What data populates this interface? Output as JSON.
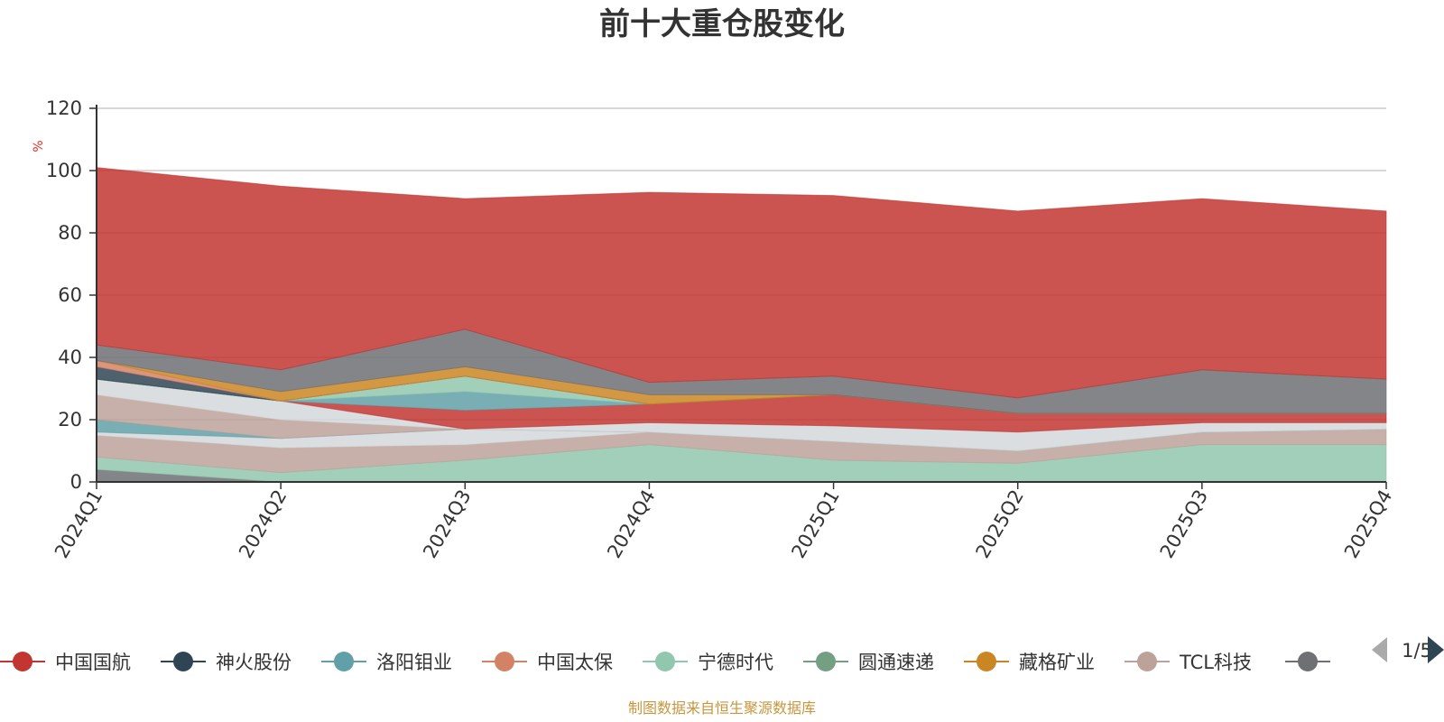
{
  "title": "前十大重仓股变化",
  "source": "制图数据来自恒生聚源数据库",
  "colors": {
    "text": "#333333",
    "unit": "#d93025",
    "source": "#c8963c",
    "axis": "#333333",
    "grid": "#cccccc",
    "pager_active": "#2f4554",
    "pager_inactive": "#aaaaaa"
  },
  "legend": {
    "items": [
      {
        "name": "中国国航",
        "color": "#c23531"
      },
      {
        "name": "神火股份",
        "color": "#2f4554"
      },
      {
        "name": "洛阳钼业",
        "color": "#61a0a8"
      },
      {
        "name": "中国太保",
        "color": "#d48265"
      },
      {
        "name": "宁德时代",
        "color": "#91c7ae"
      },
      {
        "name": "圆通速递",
        "color": "#749f83"
      },
      {
        "name": "藏格矿业",
        "color": "#ca8622"
      },
      {
        "name": "TCL科技",
        "color": "#bda29a"
      },
      {
        "name": "",
        "color": "#6e7074"
      }
    ],
    "page": "1/5"
  },
  "chart_data": {
    "type": "area",
    "stacked": true,
    "x": [
      "2024Q1",
      "2024Q2",
      "2024Q3",
      "2024Q4",
      "2025Q1",
      "2025Q2",
      "2025Q3",
      "2025Q4"
    ],
    "ylabel": "%",
    "ylim": [
      0,
      120
    ],
    "yticks": [
      0,
      20,
      40,
      60,
      80,
      100,
      120
    ],
    "grid": true,
    "series": [
      {
        "color": "#6e7074",
        "values": [
          4,
          0,
          0,
          0,
          0,
          0,
          0,
          0
        ]
      },
      {
        "color": "#91c7ae",
        "values": [
          4,
          3,
          7,
          12,
          7,
          6,
          12,
          12
        ]
      },
      {
        "color": "#bda29a",
        "values": [
          7,
          8,
          5,
          4,
          6,
          4,
          4,
          5
        ]
      },
      {
        "color": "#d4d8dc",
        "values": [
          1,
          3,
          5,
          0,
          0,
          0,
          0,
          0
        ]
      },
      {
        "color": "#61a0a8",
        "values": [
          4,
          0,
          0,
          0,
          0,
          0,
          0,
          0
        ]
      },
      {
        "color": "#bda29a",
        "values": [
          8,
          6,
          0,
          0,
          0,
          0,
          0,
          0
        ]
      },
      {
        "color": "#d4d8dc",
        "values": [
          5,
          6,
          0,
          3,
          5,
          6,
          3,
          2
        ]
      },
      {
        "color": "#c23531",
        "values": [
          0,
          0,
          6,
          6,
          10,
          6,
          3,
          3
        ]
      },
      {
        "color": "#61a0a8",
        "values": [
          0,
          0,
          6,
          0,
          0,
          0,
          0,
          0
        ]
      },
      {
        "color": "#91c7ae",
        "values": [
          0,
          0,
          5,
          0,
          0,
          0,
          0,
          0
        ]
      },
      {
        "color": "#2f4554",
        "values": [
          4,
          0,
          0,
          0,
          0,
          0,
          0,
          0
        ]
      },
      {
        "color": "#d48265",
        "values": [
          2,
          0,
          0,
          0,
          0,
          0,
          0,
          0
        ]
      },
      {
        "color": "#ca8622",
        "values": [
          0,
          3,
          3,
          3,
          0,
          0,
          0,
          0
        ]
      },
      {
        "color": "#6e7074",
        "values": [
          5,
          7,
          12,
          4,
          6,
          5,
          14,
          11
        ]
      },
      {
        "color": "#c23531",
        "values": [
          57,
          59,
          42,
          61,
          58,
          60,
          55,
          54
        ]
      }
    ]
  }
}
